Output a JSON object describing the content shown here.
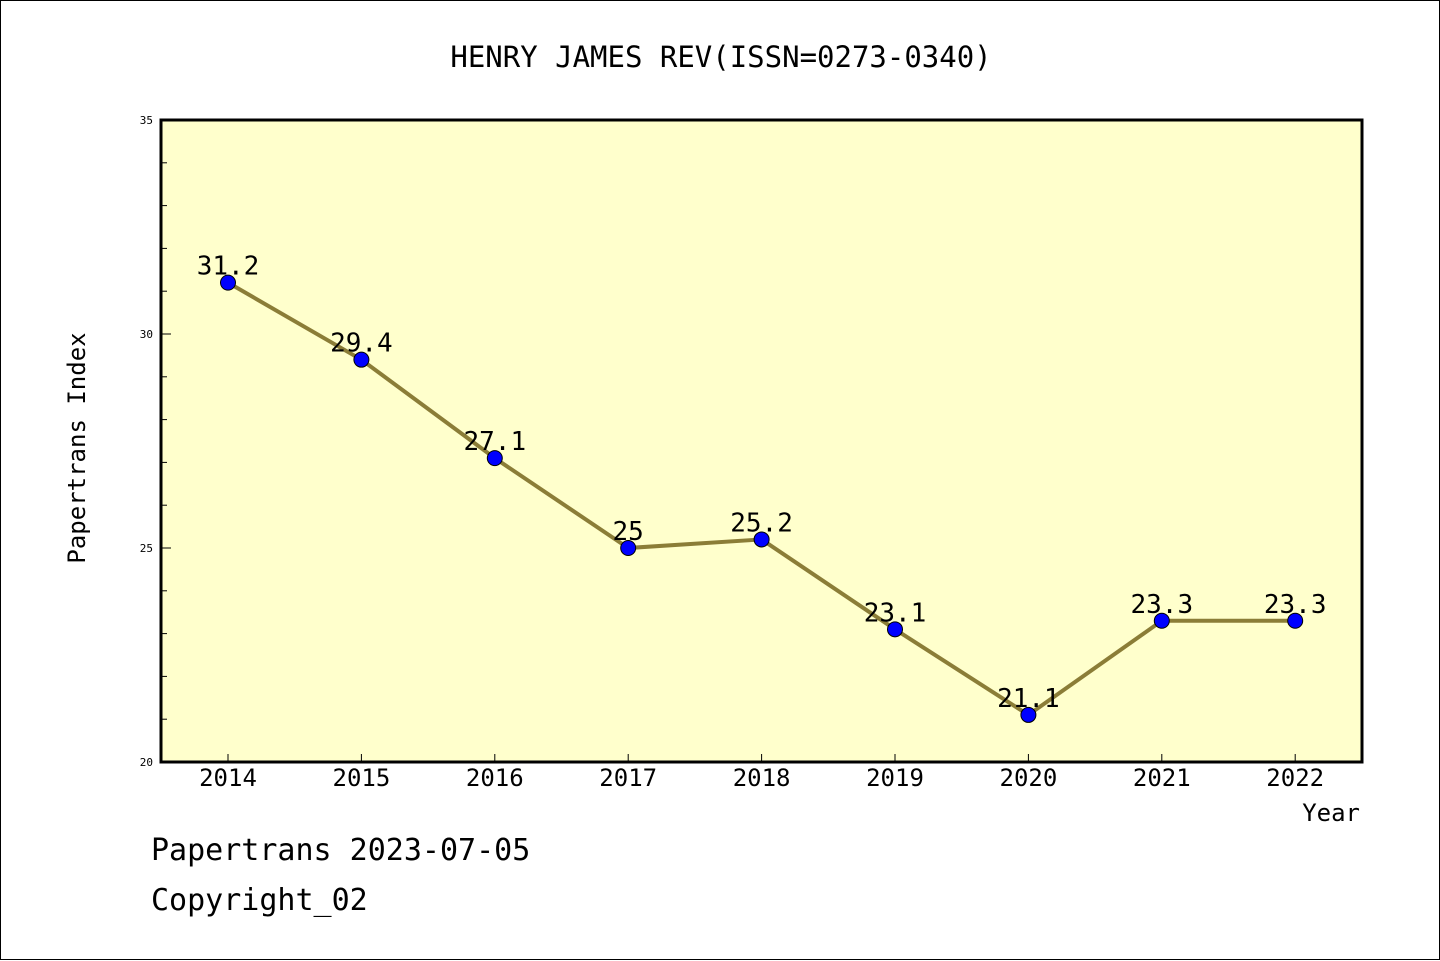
{
  "chart_data": {
    "type": "line",
    "title": "HENRY JAMES REV(ISSN=0273-0340)",
    "xlabel": "Year",
    "ylabel": "Papertrans Index",
    "categories": [
      "2014",
      "2015",
      "2016",
      "2017",
      "2018",
      "2019",
      "2020",
      "2021",
      "2022"
    ],
    "series": [
      {
        "values": [
          31.2,
          29.4,
          27.1,
          25,
          25.2,
          23.1,
          21.1,
          23.3,
          23.3
        ]
      }
    ],
    "data_labels": [
      "31.2",
      "29.4",
      "27.1",
      "25",
      "25.2",
      "23.1",
      "21.1",
      "23.3",
      "23.3"
    ],
    "ylim": [
      20,
      35
    ],
    "yticks": [
      20,
      25,
      30,
      35
    ],
    "grid": false,
    "legend": "none",
    "colors": {
      "plot_background": "#FFFFCC",
      "line": "#8B7D37",
      "marker": "#0000FF",
      "axis": "#000000",
      "text": "#000000"
    }
  },
  "footer": {
    "line1": "Papertrans 2023-07-05",
    "line2": "Copyright_02"
  }
}
